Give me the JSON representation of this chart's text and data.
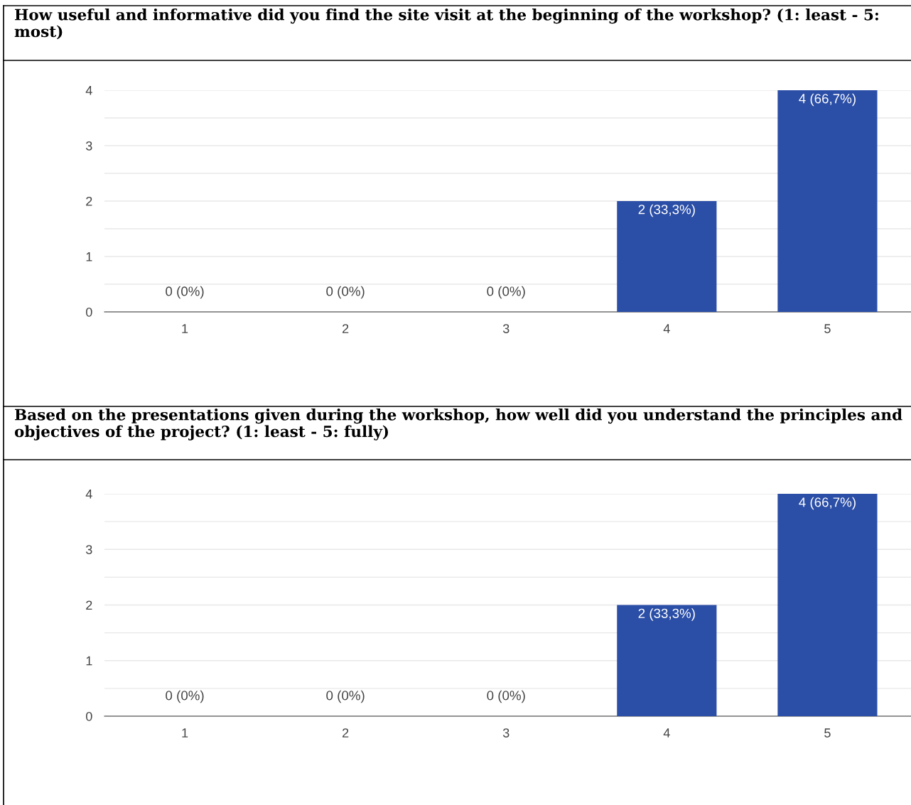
{
  "chart_data": [
    {
      "type": "bar",
      "title": "How useful and informative did you find the site visit at the beginning of the workshop? (1: least - 5: most)",
      "categories": [
        "1",
        "2",
        "3",
        "4",
        "5"
      ],
      "values": [
        0,
        0,
        0,
        2,
        4
      ],
      "value_labels": [
        "0 (0%)",
        "0 (0%)",
        "0 (0%)",
        "2 (33,3%)",
        "4 (66,7%)"
      ],
      "color": "#2b4ea6",
      "ylim": [
        0,
        4
      ],
      "yticks": [
        0,
        {
          "value": 0.5,
          "label": null
        },
        1,
        {
          "value": 1.5,
          "label": null
        },
        2,
        {
          "value": 2.5,
          "label": null
        },
        3,
        {
          "value": 3.5,
          "label": null
        },
        4
      ],
      "grid": "y"
    },
    {
      "type": "bar",
      "title": "Based on the presentations given during the workshop, how well did you understand the principles and objectives of the project? (1: least - 5: fully)",
      "categories": [
        "1",
        "2",
        "3",
        "4",
        "5"
      ],
      "values": [
        0,
        0,
        0,
        2,
        4
      ],
      "value_labels": [
        "0 (0%)",
        "0 (0%)",
        "0 (0%)",
        "2 (33,3%)",
        "4 (66,7%)"
      ],
      "color": "#2b4ea6",
      "ylim": [
        0,
        4
      ],
      "yticks": [
        0,
        {
          "value": 0.5,
          "label": null
        },
        1,
        {
          "value": 1.5,
          "label": null
        },
        2,
        {
          "value": 2.5,
          "label": null
        },
        3,
        {
          "value": 3.5,
          "label": null
        },
        4
      ],
      "grid": "y"
    }
  ]
}
